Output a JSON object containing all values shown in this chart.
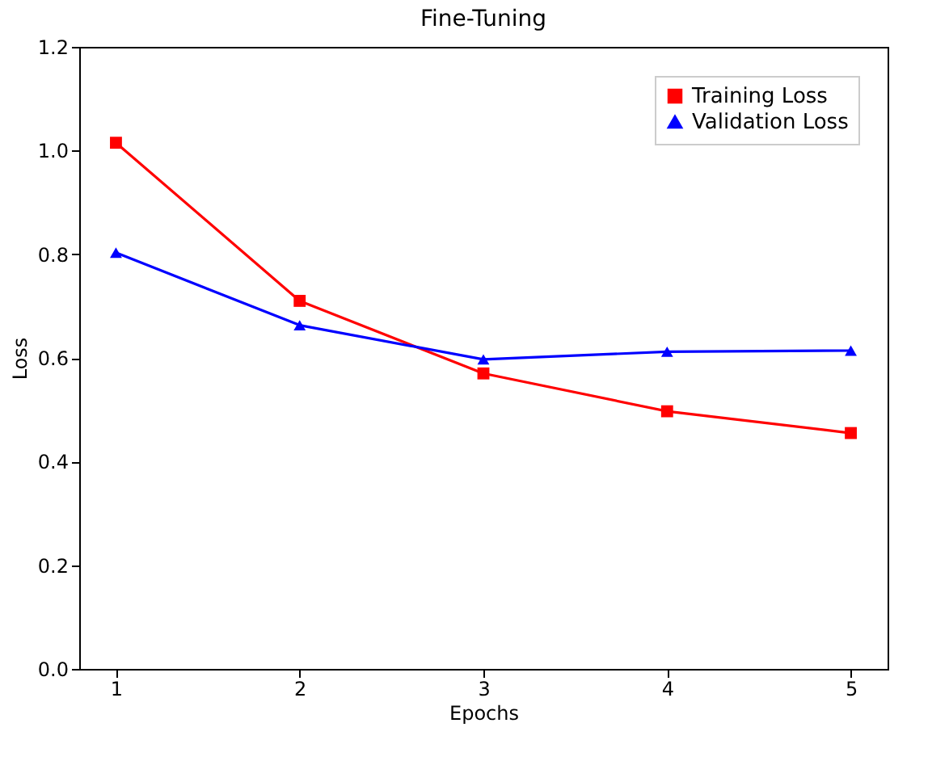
{
  "chart_data": {
    "type": "line",
    "title": "Fine-Tuning",
    "xlabel": "Epochs",
    "ylabel": "Loss",
    "x": [
      1,
      2,
      3,
      4,
      5
    ],
    "series": [
      {
        "name": "Training Loss",
        "color": "#ff0000",
        "marker": "square",
        "values": [
          1.015,
          0.71,
          0.57,
          0.497,
          0.455
        ]
      },
      {
        "name": "Validation Loss",
        "color": "#0000ff",
        "marker": "triangle",
        "values": [
          0.803,
          0.663,
          0.597,
          0.612,
          0.614
        ]
      }
    ],
    "xlim": [
      0.8,
      5.2
    ],
    "xticks": [
      1,
      2,
      3,
      4,
      5
    ],
    "ylim": [
      0.0,
      1.2
    ],
    "yticks": [
      {
        "value": 0,
        "label": "0.0"
      },
      0.2,
      0.4,
      0.6,
      0.8,
      {
        "value": 1,
        "label": "1.0"
      },
      1.2
    ],
    "grid": false,
    "legend": "top right",
    "line_style": "solid"
  }
}
